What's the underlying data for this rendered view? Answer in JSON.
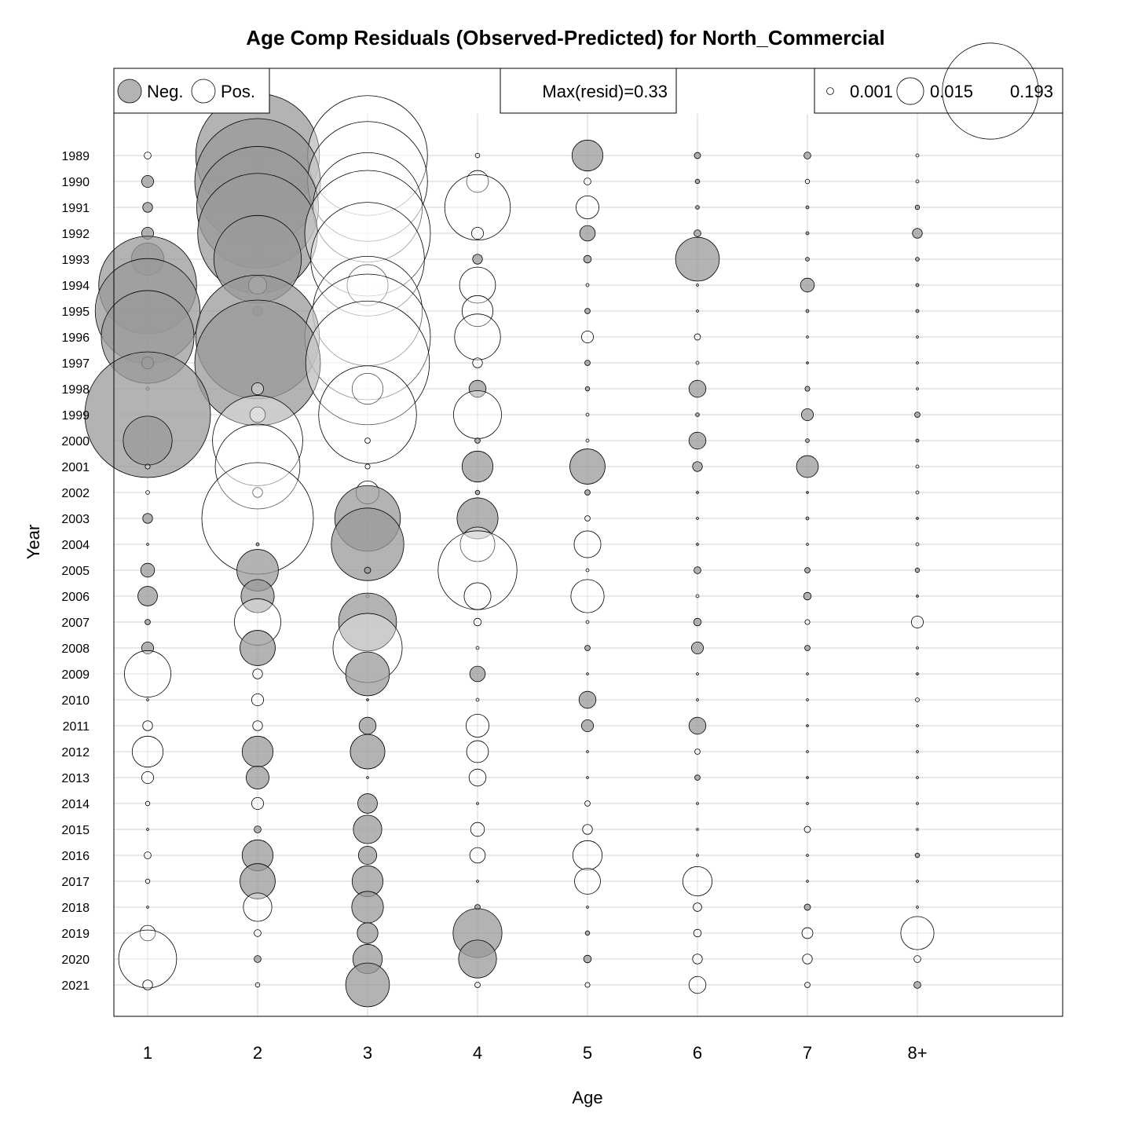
{
  "chart_data": {
    "type": "scatter",
    "subtype": "bubble",
    "title": "Age Comp Residuals (Observed-Predicted) for North_Commercial",
    "xlabel": "Age",
    "ylabel": "Year",
    "x_categories": [
      "1",
      "2",
      "3",
      "4",
      "5",
      "6",
      "7",
      "8+"
    ],
    "years": [
      1989,
      1990,
      1991,
      1992,
      1993,
      1994,
      1995,
      1996,
      1997,
      1998,
      1999,
      2000,
      2001,
      2002,
      2003,
      2004,
      2005,
      2006,
      2007,
      2008,
      2009,
      2010,
      2011,
      2012,
      2013,
      2014,
      2015,
      2016,
      2017,
      2018,
      2019,
      2020,
      2021
    ],
    "grid": true,
    "colors": {
      "negative": "#999999",
      "positive": "#ffffff",
      "outline": "#000000",
      "grid": "#d3d3d3"
    },
    "legend": {
      "neg_label": "Neg.",
      "pos_label": "Pos.",
      "max_label": "Max(resid)=0.33",
      "max_resid": 0.33,
      "size_values": [
        0.001,
        0.015,
        0.193
      ],
      "size_labels": [
        "0.001",
        "0.015",
        "0.193"
      ],
      "placement": "top"
    },
    "series": [
      {
        "year": 1989,
        "values": [
          0.001,
          -0.32,
          0.3,
          0.0004,
          -0.02,
          -0.0008,
          -0.001,
          0.0002
        ]
      },
      {
        "year": 1990,
        "values": [
          -0.003,
          -0.33,
          0.3,
          0.01,
          0.001,
          -0.0004,
          0.0004,
          0.0002
        ]
      },
      {
        "year": 1991,
        "values": [
          -0.002,
          -0.31,
          0.25,
          0.09,
          0.011,
          -0.0003,
          -0.0002,
          -0.0004
        ]
      },
      {
        "year": 1992,
        "values": [
          -0.003,
          -0.3,
          0.33,
          0.003,
          -0.005,
          -0.001,
          -0.0002,
          -0.002
        ]
      },
      {
        "year": 1993,
        "values": [
          -0.022,
          -0.16,
          0.27,
          -0.002,
          -0.0012,
          -0.04,
          -0.0003,
          -0.0003
        ]
      },
      {
        "year": 1994,
        "values": [
          -0.2,
          0.007,
          0.035,
          0.027,
          0.0002,
          0.0001,
          -0.004,
          -0.0002
        ]
      },
      {
        "year": 1995,
        "values": [
          -0.23,
          -0.002,
          0.25,
          0.02,
          -0.0006,
          0.0001,
          -0.0002,
          -0.0002
        ]
      },
      {
        "year": 1996,
        "values": [
          -0.18,
          -0.32,
          0.33,
          0.044,
          0.003,
          0.0008,
          0.0001,
          0.0001
        ]
      },
      {
        "year": 1997,
        "values": [
          -0.003,
          -0.33,
          0.32,
          0.002,
          -0.0006,
          0.0002,
          -0.0001,
          0.0001
        ]
      },
      {
        "year": 1998,
        "values": [
          0.0002,
          0.003,
          0.02,
          -0.006,
          -0.0004,
          -0.006,
          -0.0005,
          0.0001
        ]
      },
      {
        "year": 1999,
        "values": [
          -0.33,
          0.005,
          0.2,
          0.048,
          0.0002,
          -0.0003,
          -0.003,
          -0.0006
        ]
      },
      {
        "year": 2000,
        "values": [
          -0.05,
          0.17,
          0.0006,
          -0.0006,
          0.0002,
          -0.006,
          -0.0003,
          -0.0002
        ]
      },
      {
        "year": 2001,
        "values": [
          0.0005,
          0.15,
          0.0005,
          -0.02,
          -0.026,
          -0.002,
          -0.01,
          0.0002
        ]
      },
      {
        "year": 2002,
        "values": [
          0.0003,
          0.002,
          0.011,
          -0.0004,
          -0.0006,
          -0.0001,
          -0.0001,
          0.0002
        ]
      },
      {
        "year": 2003,
        "values": [
          -0.002,
          0.26,
          -0.09,
          -0.035,
          0.0006,
          0.0001,
          -0.0002,
          -0.0001
        ]
      },
      {
        "year": 2004,
        "values": [
          0.0001,
          -0.0002,
          -0.11,
          0.025,
          0.015,
          -0.0001,
          0.0001,
          0.0002
        ]
      },
      {
        "year": 2005,
        "values": [
          -0.004,
          -0.036,
          -0.0008,
          0.13,
          0.0002,
          -0.001,
          -0.0006,
          -0.0004
        ]
      },
      {
        "year": 2006,
        "values": [
          -0.008,
          -0.023,
          0.0002,
          0.015,
          0.023,
          0.0002,
          -0.0012,
          -0.0001
        ]
      },
      {
        "year": 2007,
        "values": [
          -0.0006,
          0.045,
          -0.07,
          0.0012,
          0.0002,
          -0.0012,
          0.0005,
          0.003
        ]
      },
      {
        "year": 2008,
        "values": [
          -0.003,
          -0.026,
          0.1,
          0.0002,
          -0.0006,
          -0.003,
          -0.0006,
          0.0001
        ]
      },
      {
        "year": 2009,
        "values": [
          0.045,
          0.002,
          -0.04,
          -0.005,
          0.0001,
          0.0001,
          0.0001,
          -0.0001
        ]
      },
      {
        "year": 2010,
        "values": [
          0.0001,
          0.003,
          -0.0001,
          0.0002,
          -0.006,
          0.0001,
          0.0001,
          0.0003
        ]
      },
      {
        "year": 2011,
        "values": [
          0.002,
          0.002,
          -0.006,
          0.011,
          -0.003,
          -0.006,
          -0.0001,
          0.0001
        ]
      },
      {
        "year": 2012,
        "values": [
          0.02,
          -0.02,
          -0.025,
          0.01,
          0.0001,
          0.0006,
          0.0001,
          0.0001
        ]
      },
      {
        "year": 2013,
        "values": [
          0.003,
          -0.011,
          0.0001,
          0.006,
          0.0001,
          -0.0006,
          -0.0001,
          0.0001
        ]
      },
      {
        "year": 2014,
        "values": [
          0.0004,
          0.003,
          -0.008,
          0.0001,
          0.0006,
          0.0001,
          0.0001,
          0.0001
        ]
      },
      {
        "year": 2015,
        "values": [
          0.0001,
          -0.001,
          -0.017,
          0.004,
          0.002,
          0.0001,
          0.0008,
          0.0001
        ]
      },
      {
        "year": 2016,
        "values": [
          0.001,
          -0.02,
          -0.007,
          0.005,
          0.018,
          0.0001,
          0.0001,
          -0.0004
        ]
      },
      {
        "year": 2017,
        "values": [
          0.0004,
          -0.026,
          -0.02,
          0.0001,
          0.014,
          0.018,
          0.0001,
          0.0001
        ]
      },
      {
        "year": 2018,
        "values": [
          0.0001,
          0.017,
          -0.021,
          -0.0006,
          0.0001,
          0.0015,
          -0.0008,
          0.0001
        ]
      },
      {
        "year": 2019,
        "values": [
          0.005,
          0.001,
          -0.009,
          -0.05,
          -0.0004,
          0.0012,
          0.0025,
          0.023
        ]
      },
      {
        "year": 2020,
        "values": [
          0.07,
          -0.001,
          -0.018,
          -0.03,
          -0.0012,
          0.002,
          0.002,
          0.001
        ]
      },
      {
        "year": 2021,
        "values": [
          0.002,
          0.0004,
          -0.04,
          0.0006,
          0.0005,
          0.006,
          0.0006,
          -0.001
        ]
      }
    ]
  }
}
